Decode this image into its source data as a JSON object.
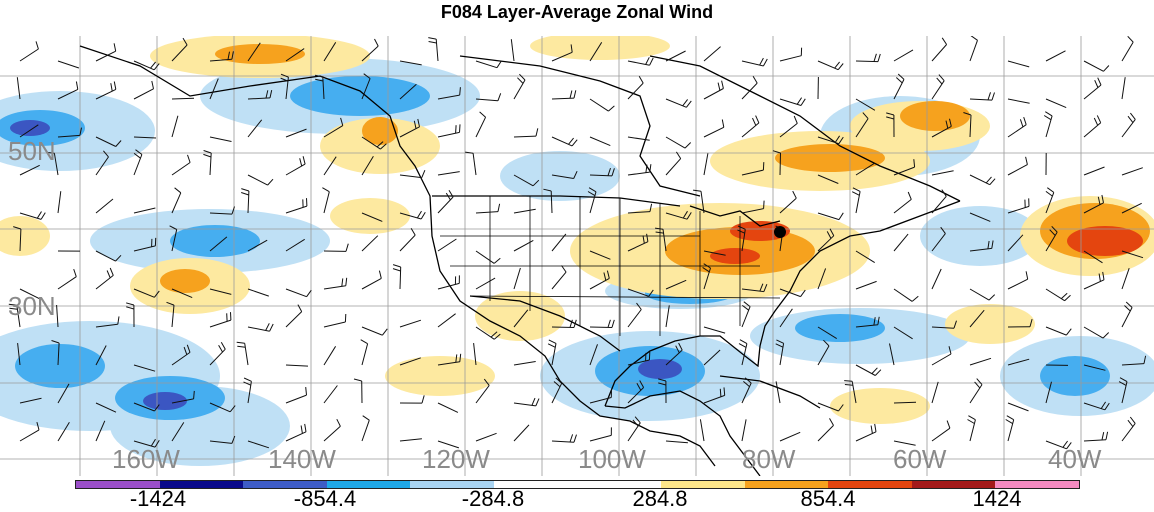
{
  "title": "F084 Layer-Average Zonal Wind",
  "latitude_labels": [
    "50N",
    "30N"
  ],
  "longitude_labels": [
    "160W",
    "140W",
    "120W",
    "100W",
    "80W",
    "60W",
    "40W"
  ],
  "colorbar": {
    "colors": [
      "#9b4fc9",
      "#0a0a8a",
      "#3e5cc6",
      "#1fa8e8",
      "#a9d4f2",
      "#ffffff",
      "#ffffff",
      "#fde68a",
      "#f6a21e",
      "#e4450f",
      "#a31a1a",
      "#f58bc2"
    ],
    "labels": [
      "-1424",
      "-854.4",
      "-284.8",
      "284.8",
      "854.4",
      "1424"
    ]
  },
  "colors": {
    "coastline": "#000000",
    "grid": "#9a9a9a",
    "barb": "#111111",
    "marker": "#000000"
  }
}
